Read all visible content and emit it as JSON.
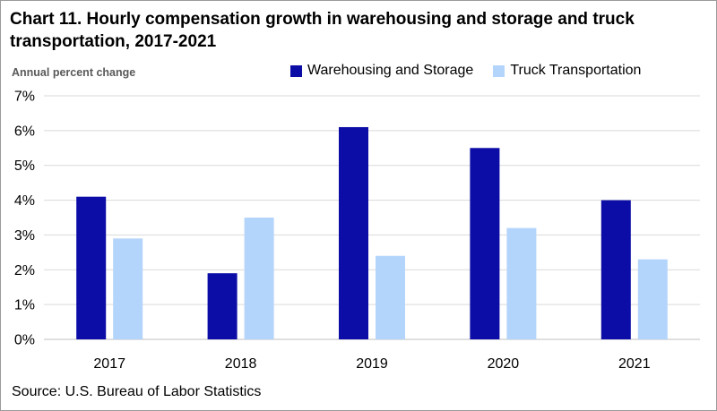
{
  "title": "Chart 11. Hourly compensation growth in warehousing and storage and truck transportation, 2017-2021",
  "source": "Source: U.S. Bureau of Labor Statistics",
  "colors": {
    "warehousing": "#0c0ca6",
    "truck": "#b4d5fb",
    "gridline": "#d9d9d9",
    "axis": "#bfbfbf"
  },
  "chart_data": {
    "type": "bar",
    "title": "Chart 11. Hourly compensation growth in warehousing and storage and truck transportation, 2017-2021",
    "ylabel": "Annual percent change",
    "xlabel": "",
    "categories": [
      "2017",
      "2018",
      "2019",
      "2020",
      "2021"
    ],
    "series": [
      {
        "name": "Warehousing and Storage",
        "values": [
          4.1,
          1.9,
          6.1,
          5.5,
          4.0
        ]
      },
      {
        "name": "Truck Transportation",
        "values": [
          2.9,
          3.5,
          2.4,
          3.2,
          2.3
        ]
      }
    ],
    "ylim": [
      0,
      7
    ],
    "yticks": [
      0,
      1,
      2,
      3,
      4,
      5,
      6,
      7
    ],
    "ytick_labels": [
      "0%",
      "1%",
      "2%",
      "3%",
      "4%",
      "5%",
      "6%",
      "7%"
    ],
    "grid": true,
    "legend_position": "top"
  }
}
